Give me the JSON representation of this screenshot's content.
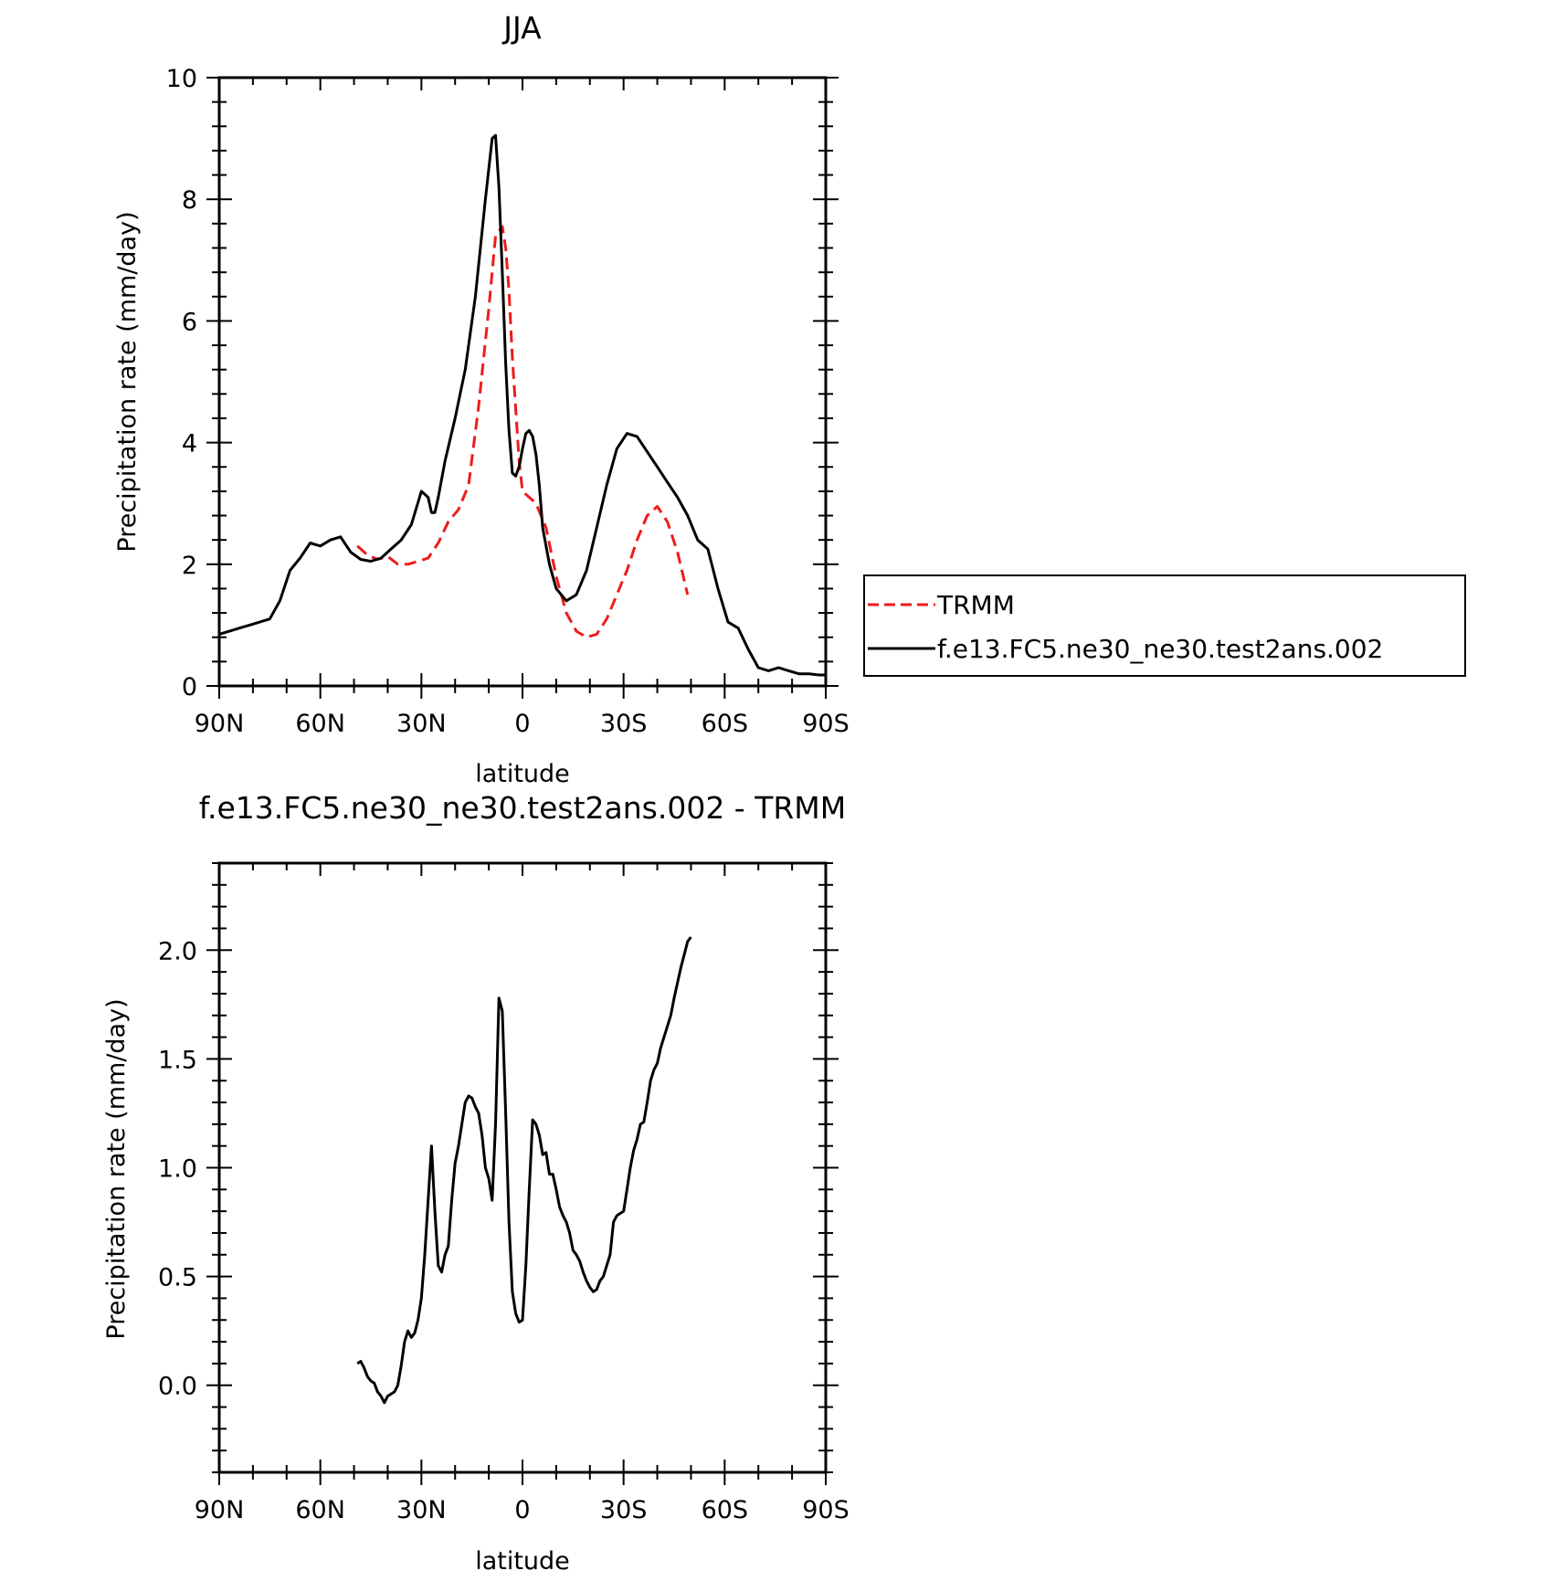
{
  "chart_data": [
    {
      "type": "line",
      "title": "JJA",
      "xlabel": "latitude",
      "ylabel": "Precipitation rate (mm/day)",
      "x_reversed": true,
      "xlim": [
        -90,
        90
      ],
      "ylim": [
        0,
        10
      ],
      "xticks": [
        90,
        60,
        30,
        0,
        -30,
        -60,
        -90
      ],
      "xticklabels": [
        "90N",
        "60N",
        "30N",
        "0",
        "30S",
        "60S",
        "90S"
      ],
      "yticks": [
        0,
        2,
        4,
        6,
        8,
        10
      ],
      "yticklabels": [
        "0",
        "2",
        "4",
        "6",
        "8",
        "10"
      ],
      "legend": {
        "position": "right",
        "entries": [
          "TRMM",
          "f.e13.FC5.ne30_ne30.test2ans.002"
        ]
      },
      "series": [
        {
          "name": "TRMM",
          "color": "#ee1c1c",
          "dash": true,
          "x": [
            49,
            46,
            43,
            40,
            37,
            34,
            31,
            28,
            25,
            22,
            19,
            16,
            13,
            10,
            8,
            6,
            5,
            4,
            3,
            1,
            0,
            -2,
            -4,
            -7,
            -10,
            -13,
            -16,
            -19,
            -22,
            -25,
            -28,
            -31,
            -34,
            -37,
            -40,
            -43,
            -46,
            -49
          ],
          "y": [
            2.3,
            2.15,
            2.08,
            2.13,
            2.0,
            2.0,
            2.05,
            2.1,
            2.35,
            2.7,
            2.9,
            3.3,
            4.6,
            6.2,
            7.4,
            7.55,
            7.2,
            6.5,
            5.4,
            3.7,
            3.2,
            3.1,
            3.0,
            2.6,
            1.8,
            1.2,
            0.9,
            0.8,
            0.85,
            1.1,
            1.5,
            1.9,
            2.4,
            2.8,
            2.95,
            2.7,
            2.2,
            1.5
          ]
        },
        {
          "name": "f.e13.FC5.ne30_ne30.test2ans.002",
          "color": "#000000",
          "dash": false,
          "x": [
            90,
            87,
            84,
            81,
            78,
            75,
            72,
            69,
            66,
            63,
            60,
            57,
            54,
            51,
            48,
            45,
            42,
            39,
            36,
            33,
            30,
            28,
            27,
            26,
            25,
            23,
            20,
            17,
            14,
            11,
            9,
            8,
            7,
            6,
            5,
            4,
            3,
            2,
            1,
            0,
            -1,
            -2,
            -3,
            -4,
            -5,
            -6,
            -8,
            -10,
            -13,
            -16,
            -19,
            -22,
            -25,
            -28,
            -31,
            -34,
            -37,
            -40,
            -43,
            -46,
            -49,
            -52,
            -55,
            -58,
            -61,
            -64,
            -67,
            -70,
            -73,
            -76,
            -79,
            -82,
            -85,
            -88,
            -90
          ],
          "y": [
            0.85,
            0.9,
            0.95,
            1.0,
            1.05,
            1.1,
            1.4,
            1.9,
            2.1,
            2.35,
            2.3,
            2.4,
            2.45,
            2.2,
            2.08,
            2.05,
            2.1,
            2.25,
            2.4,
            2.65,
            3.2,
            3.1,
            2.85,
            2.85,
            3.1,
            3.7,
            4.4,
            5.2,
            6.4,
            8.0,
            9.0,
            9.05,
            8.2,
            6.8,
            5.3,
            4.2,
            3.5,
            3.45,
            3.6,
            3.9,
            4.15,
            4.2,
            4.1,
            3.8,
            3.3,
            2.6,
            2.0,
            1.6,
            1.4,
            1.5,
            1.9,
            2.6,
            3.3,
            3.9,
            4.15,
            4.1,
            3.85,
            3.6,
            3.35,
            3.1,
            2.8,
            2.4,
            2.25,
            1.6,
            1.05,
            0.95,
            0.6,
            0.3,
            0.25,
            0.3,
            0.25,
            0.2,
            0.2,
            0.18,
            0.18
          ]
        }
      ]
    },
    {
      "type": "line",
      "title": "f.e13.FC5.ne30_ne30.test2ans.002 - TRMM",
      "xlabel": "latitude",
      "ylabel": "Precipitation rate (mm/day)",
      "x_reversed": true,
      "xlim": [
        -90,
        90
      ],
      "ylim": [
        -0.4,
        2.4
      ],
      "xticks": [
        90,
        60,
        30,
        0,
        -30,
        -60,
        -90
      ],
      "xticklabels": [
        "90N",
        "60N",
        "30N",
        "0",
        "30S",
        "60S",
        "90S"
      ],
      "yticks": [
        0.0,
        0.5,
        1.0,
        1.5,
        2.0
      ],
      "yticklabels": [
        "0.0",
        "0.5",
        "1.0",
        "1.5",
        "2.0"
      ],
      "series": [
        {
          "color": "#000000",
          "dash": false,
          "x": [
            49,
            48,
            47,
            46,
            45,
            44,
            43,
            42,
            41,
            40,
            39,
            38,
            37,
            36,
            35,
            34,
            33,
            32,
            31,
            30,
            29,
            28,
            27,
            26,
            25,
            24,
            23,
            22,
            21,
            20,
            19,
            18,
            17,
            16,
            15,
            14,
            13,
            12,
            11,
            10,
            9,
            8,
            7,
            6,
            5,
            4,
            3,
            2,
            1,
            0,
            -1,
            -2,
            -3,
            -4,
            -5,
            -6,
            -7,
            -8,
            -9,
            -10,
            -11,
            -12,
            -13,
            -14,
            -15,
            -16,
            -17,
            -18,
            -19,
            -20,
            -21,
            -22,
            -23,
            -24,
            -25,
            -26,
            -27,
            -28,
            -29,
            -30,
            -31,
            -32,
            -33,
            -34,
            -35,
            -36,
            -37,
            -38,
            -39,
            -40,
            -41,
            -42,
            -43,
            -44,
            -45,
            -46,
            -47,
            -48,
            -49,
            -50
          ],
          "y": [
            0.1,
            0.11,
            0.08,
            0.04,
            0.02,
            0.01,
            -0.03,
            -0.05,
            -0.08,
            -0.05,
            -0.04,
            -0.03,
            0.0,
            0.09,
            0.2,
            0.25,
            0.22,
            0.24,
            0.3,
            0.4,
            0.6,
            0.85,
            1.1,
            0.8,
            0.55,
            0.52,
            0.6,
            0.64,
            0.85,
            1.02,
            1.1,
            1.2,
            1.3,
            1.33,
            1.32,
            1.28,
            1.25,
            1.15,
            1.0,
            0.95,
            0.85,
            1.2,
            1.78,
            1.72,
            1.25,
            0.75,
            0.43,
            0.33,
            0.29,
            0.3,
            0.55,
            0.9,
            1.22,
            1.2,
            1.15,
            1.06,
            1.07,
            0.97,
            0.97,
            0.9,
            0.82,
            0.78,
            0.75,
            0.7,
            0.62,
            0.6,
            0.57,
            0.52,
            0.48,
            0.45,
            0.43,
            0.44,
            0.48,
            0.5,
            0.55,
            0.6,
            0.75,
            0.78,
            0.79,
            0.8,
            0.9,
            1.0,
            1.08,
            1.13,
            1.2,
            1.21,
            1.3,
            1.4,
            1.45,
            1.48,
            1.55,
            1.6,
            1.65,
            1.7,
            1.78,
            1.85,
            1.92,
            1.98,
            2.04,
            2.06
          ]
        }
      ]
    }
  ]
}
